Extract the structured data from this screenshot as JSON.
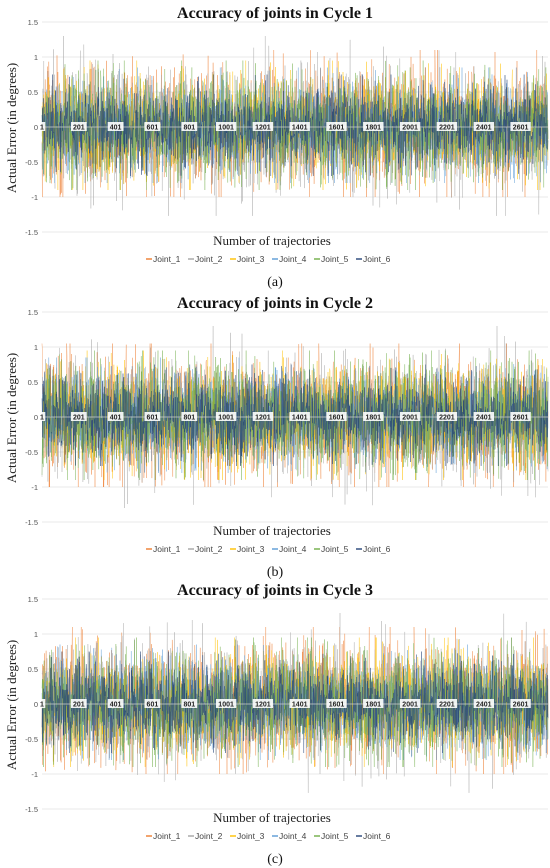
{
  "figure": {
    "panels": [
      {
        "title": "Accuracy of joints in Cycle 1",
        "caption": "(a)",
        "xlabel": "Number of trajectories",
        "ylabel": "Actual Error (in degrees)",
        "legend": [
          "Joint_1",
          "Joint_2",
          "Joint_3",
          "Joint_4",
          "Joint_5",
          "Joint_6"
        ]
      },
      {
        "title": "Accuracy of joints in Cycle 2",
        "caption": "(b)",
        "xlabel": "Number of trajectories",
        "ylabel": "Actual Error (in degrees)",
        "legend": [
          "Joint_1",
          "Joint_2",
          "Joint_3",
          "Joint_4",
          "Joint_5",
          "Joint_6"
        ]
      },
      {
        "title": "Accuracy of joints in Cycle 3",
        "caption": "(c)",
        "xlabel": "Number of trajectories",
        "ylabel": "Actual Error (in degrees)",
        "legend": [
          "Joint_1",
          "Joint_2",
          "Joint_3",
          "Joint_4",
          "Joint_5",
          "Joint_6"
        ]
      }
    ]
  },
  "chart_data": [
    {
      "type": "line",
      "title": "Accuracy of joints in Cycle 1",
      "xlabel": "Number of trajectories",
      "ylabel": "Actual Error (in degrees)",
      "ylim": [
        -1.5,
        1.5
      ],
      "yticks": [
        "1.5",
        "1",
        "0.5",
        "0",
        "-0.5",
        "-1",
        "-1.5"
      ],
      "xlim": [
        1,
        2750
      ],
      "xticks": [
        "1",
        "201",
        "401",
        "601",
        "801",
        "1001",
        "1201",
        "1401",
        "1601",
        "1801",
        "2001",
        "2201",
        "2401",
        "2601"
      ],
      "legend_position": "bottom",
      "grid": true,
      "series": [
        {
          "name": "Joint_1",
          "color": "#ED7D31",
          "spread": 0.42,
          "min": -1.0,
          "max": 1.1
        },
        {
          "name": "Joint_2",
          "color": "#A5A5A5",
          "spread": 0.42,
          "min": -1.27,
          "max": 1.3
        },
        {
          "name": "Joint_3",
          "color": "#FFC000",
          "spread": 0.35,
          "min": -0.9,
          "max": 0.95
        },
        {
          "name": "Joint_4",
          "color": "#5B9BD5",
          "spread": 0.32,
          "min": -0.8,
          "max": 0.85
        },
        {
          "name": "Joint_5",
          "color": "#70AD47",
          "spread": 0.38,
          "min": -0.9,
          "max": 0.95
        },
        {
          "name": "Joint_6",
          "color": "#264478",
          "spread": 0.28,
          "min": -0.7,
          "max": 0.75
        }
      ]
    },
    {
      "type": "line",
      "title": "Accuracy of joints in Cycle 2",
      "xlabel": "Number of trajectories",
      "ylabel": "Actual Error (in degrees)",
      "ylim": [
        -1.5,
        1.5
      ],
      "yticks": [
        "1.5",
        "1",
        "0.5",
        "0",
        "-0.5",
        "-1",
        "-1.5"
      ],
      "xlim": [
        1,
        2750
      ],
      "xticks": [
        "1",
        "201",
        "401",
        "601",
        "801",
        "1001",
        "1201",
        "1401",
        "1601",
        "1801",
        "2001",
        "2201",
        "2401",
        "2601"
      ],
      "legend_position": "bottom",
      "grid": true,
      "series": [
        {
          "name": "Joint_1",
          "color": "#ED7D31",
          "spread": 0.42,
          "min": -1.0,
          "max": 1.05
        },
        {
          "name": "Joint_2",
          "color": "#A5A5A5",
          "spread": 0.42,
          "min": -1.3,
          "max": 1.3
        },
        {
          "name": "Joint_3",
          "color": "#FFC000",
          "spread": 0.35,
          "min": -0.9,
          "max": 0.95
        },
        {
          "name": "Joint_4",
          "color": "#5B9BD5",
          "spread": 0.32,
          "min": -0.8,
          "max": 0.85
        },
        {
          "name": "Joint_5",
          "color": "#70AD47",
          "spread": 0.38,
          "min": -0.9,
          "max": 0.95
        },
        {
          "name": "Joint_6",
          "color": "#264478",
          "spread": 0.28,
          "min": -0.7,
          "max": 0.75
        }
      ]
    },
    {
      "type": "line",
      "title": "Accuracy of joints in Cycle 3",
      "xlabel": "Number of trajectories",
      "ylabel": "Actual Error (in degrees)",
      "ylim": [
        -1.5,
        1.5
      ],
      "yticks": [
        "1.5",
        "1",
        "0.5",
        "0",
        "-0.5",
        "-1",
        "-1.5"
      ],
      "xlim": [
        1,
        2750
      ],
      "xticks": [
        "1",
        "201",
        "401",
        "601",
        "801",
        "1001",
        "1201",
        "1401",
        "1601",
        "1801",
        "2001",
        "2201",
        "2401",
        "2601"
      ],
      "legend_position": "bottom",
      "grid": true,
      "series": [
        {
          "name": "Joint_1",
          "color": "#ED7D31",
          "spread": 0.42,
          "min": -1.0,
          "max": 1.1
        },
        {
          "name": "Joint_2",
          "color": "#A5A5A5",
          "spread": 0.42,
          "min": -1.27,
          "max": 1.3
        },
        {
          "name": "Joint_3",
          "color": "#FFC000",
          "spread": 0.35,
          "min": -0.9,
          "max": 0.95
        },
        {
          "name": "Joint_4",
          "color": "#5B9BD5",
          "spread": 0.32,
          "min": -0.8,
          "max": 0.85
        },
        {
          "name": "Joint_5",
          "color": "#70AD47",
          "spread": 0.38,
          "min": -0.9,
          "max": 0.95
        },
        {
          "name": "Joint_6",
          "color": "#264478",
          "spread": 0.28,
          "min": -0.7,
          "max": 0.75
        }
      ]
    }
  ]
}
